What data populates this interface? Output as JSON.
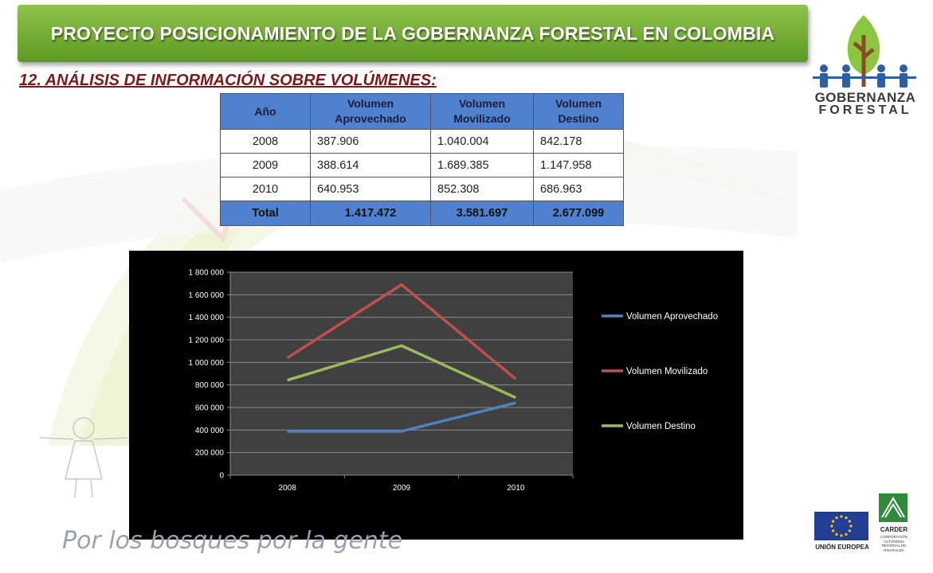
{
  "header": {
    "title": "PROYECTO POSICIONAMIENTO DE LA GOBERNANZA FORESTAL EN COLOMBIA"
  },
  "section": {
    "title": "12. ANÁLISIS DE INFORMACIÓN SOBRE VOLÚMENES:"
  },
  "logo": {
    "line1": "GOBERNANZA",
    "line2": "FORESTAL"
  },
  "table": {
    "headers": [
      "Año",
      "Volumen Aprovechado",
      "Volumen Movilizado",
      "Volumen Destino"
    ],
    "rows": [
      [
        "2008",
        "387.906",
        "1.040.004",
        "842.178"
      ],
      [
        "2009",
        "388.614",
        "1.689.385",
        "1.147.958"
      ],
      [
        "2010",
        "640.953",
        "852.308",
        "686.963"
      ]
    ],
    "total": [
      "Total",
      "1.417.472",
      "3.581.697",
      "2.677.099"
    ]
  },
  "chart_data": {
    "type": "line",
    "x": [
      "2008",
      "2009",
      "2010"
    ],
    "series": [
      {
        "name": "Volumen Aprovechado",
        "values": [
          387906,
          388614,
          640953
        ],
        "color": "#4f81bd"
      },
      {
        "name": "Volumen Movilizado",
        "values": [
          1040004,
          1689385,
          852308
        ],
        "color": "#c0504d"
      },
      {
        "name": "Volumen Destino",
        "values": [
          842178,
          1147958,
          686963
        ],
        "color": "#9bbb59"
      }
    ],
    "ylim": [
      0,
      1800000
    ],
    "yticks": [
      0,
      200000,
      400000,
      600000,
      800000,
      1000000,
      1200000,
      1400000,
      1600000,
      1800000
    ],
    "ytick_labels": [
      "0",
      "200 000",
      "400 000",
      "600 000",
      "800 000",
      "1 000 000",
      "1 200 000",
      "1 400 000",
      "1 600 000",
      "1 800 000"
    ],
    "grid": true,
    "legend": "right",
    "plot_background": "#404040",
    "background": "#000000",
    "title": "",
    "xlabel": "",
    "ylabel": ""
  },
  "footer": {
    "slogan": "Por los bosques por la gente",
    "eu_label": "UNIÓN EUROPEA",
    "carder_label": "CARDER",
    "carder_sub": "CORPORACIÓN AUTÓNOMA REGIONAL DE RISARALDA"
  },
  "colors": {
    "banner": "#6aa630",
    "section_title": "#7a1a1a",
    "table_header": "#4f81cf"
  }
}
